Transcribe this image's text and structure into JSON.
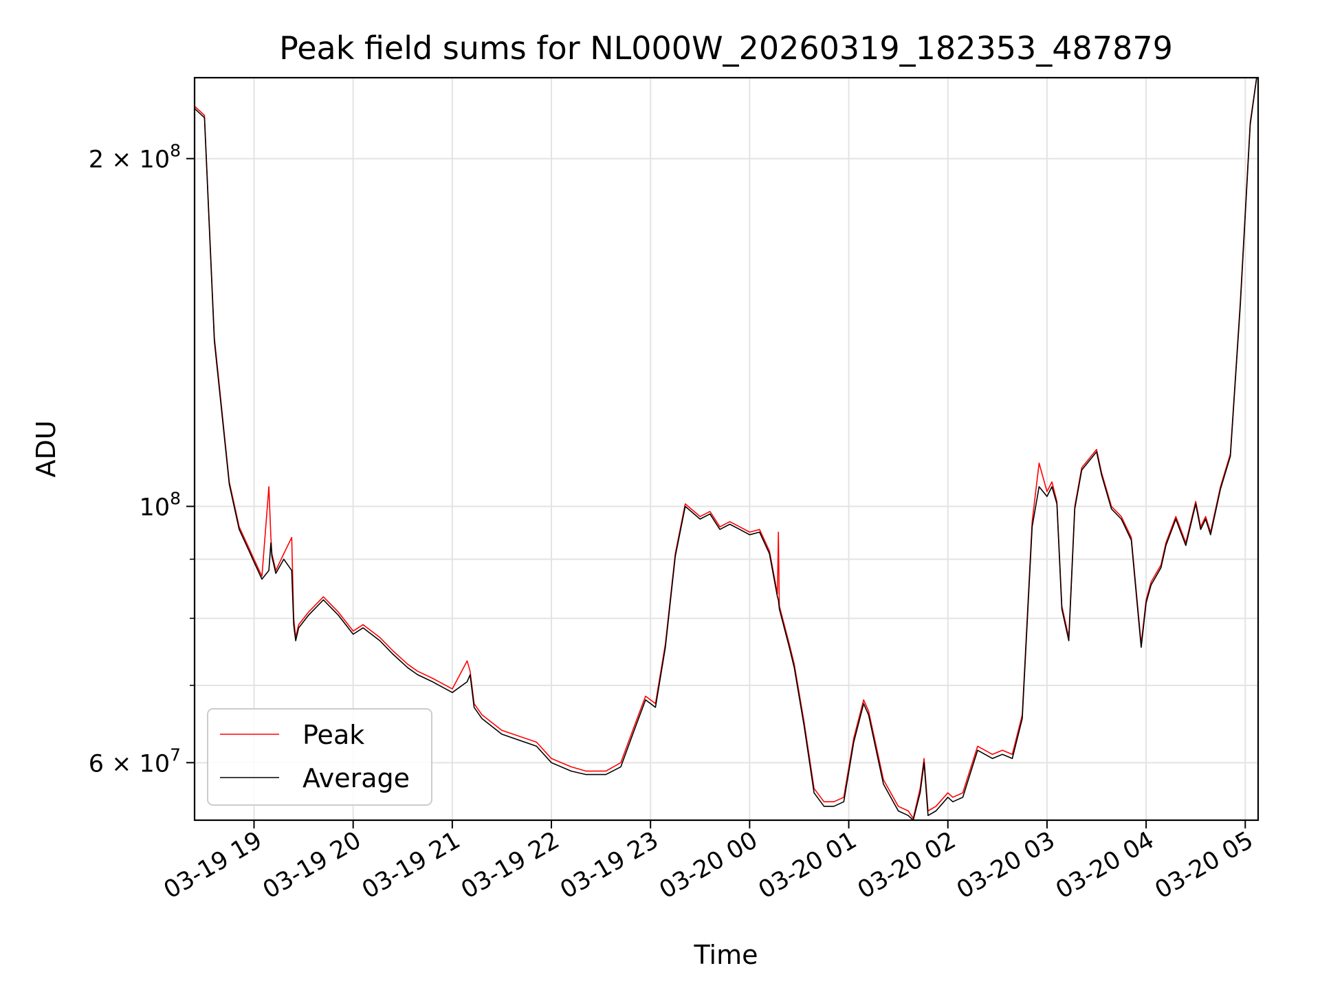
{
  "chart_data": {
    "type": "line",
    "title": "Peak field sums for NL000W_20260319_182353_487879",
    "xlabel": "Time",
    "ylabel": "ADU",
    "yscale": "log",
    "ylim": [
      53500000,
      235000000
    ],
    "xlim_hours": [
      18.4,
      29.13
    ],
    "grid": true,
    "legend_position": "lower-left",
    "x_tick_hours": [
      19,
      20,
      21,
      22,
      23,
      24,
      25,
      26,
      27,
      28,
      29
    ],
    "x_tick_labels": [
      "03-19 19",
      "03-19 20",
      "03-19 21",
      "03-19 22",
      "03-19 23",
      "03-20 00",
      "03-20 01",
      "03-20 02",
      "03-20 03",
      "03-20 04",
      "03-20 05"
    ],
    "y_major_ticks": [
      {
        "value": 60000000,
        "mantissa": "6",
        "exponent": "7"
      },
      {
        "value": 100000000,
        "mantissa": "",
        "exponent": "8"
      },
      {
        "value": 200000000,
        "mantissa": "2",
        "exponent": "8"
      }
    ],
    "y_times_symbol": "×",
    "y_base": "10",
    "y_minor_ticks": [
      70000000,
      80000000,
      90000000
    ],
    "series": [
      {
        "name": "Peak",
        "color": "#ff0000",
        "x": [
          18.4,
          18.5,
          18.6,
          18.75,
          18.85,
          18.95,
          19.0,
          19.08,
          19.15,
          19.17,
          19.18,
          19.22,
          19.3,
          19.38,
          19.4,
          19.42,
          19.45,
          19.55,
          19.7,
          19.85,
          20.0,
          20.1,
          20.27,
          20.4,
          20.55,
          20.65,
          20.8,
          21.0,
          21.15,
          21.18,
          21.22,
          21.3,
          21.5,
          21.85,
          22.0,
          22.2,
          22.35,
          22.55,
          22.7,
          22.85,
          22.95,
          23.05,
          23.15,
          23.25,
          23.35,
          23.5,
          23.6,
          23.7,
          23.8,
          23.9,
          24.0,
          24.1,
          24.2,
          24.28,
          24.29,
          24.3,
          24.4,
          24.45,
          24.55,
          24.65,
          24.75,
          24.85,
          24.95,
          25.05,
          25.15,
          25.2,
          25.35,
          25.5,
          25.6,
          25.65,
          25.72,
          25.76,
          25.8,
          25.88,
          26.0,
          26.05,
          26.15,
          26.3,
          26.45,
          26.55,
          26.65,
          26.75,
          26.85,
          26.92,
          27.0,
          27.05,
          27.1,
          27.15,
          27.22,
          27.28,
          27.35,
          27.5,
          27.55,
          27.65,
          27.75,
          27.85,
          27.95,
          28.0,
          28.05,
          28.15,
          28.2,
          28.3,
          28.4,
          28.5,
          28.55,
          28.6,
          28.65,
          28.75,
          28.85,
          28.95,
          29.05,
          29.13
        ],
        "values": [
          222000000,
          218000000,
          140000000,
          105000000,
          96000000,
          92000000,
          90000000,
          87000000,
          104000000,
          94000000,
          91000000,
          88000000,
          91000000,
          94000000,
          80000000,
          77000000,
          79000000,
          81000000,
          83500000,
          81000000,
          78000000,
          79000000,
          77000000,
          75000000,
          73000000,
          72000000,
          71000000,
          69500000,
          73500000,
          72000000,
          67500000,
          66000000,
          64000000,
          62500000,
          60500000,
          59500000,
          59000000,
          59000000,
          60000000,
          65000000,
          68500000,
          67500000,
          76000000,
          91000000,
          100500000,
          98000000,
          99000000,
          96000000,
          97000000,
          96000000,
          95000000,
          95500000,
          91500000,
          84000000,
          95000000,
          82000000,
          76000000,
          73000000,
          65000000,
          57000000,
          55500000,
          55500000,
          56000000,
          63000000,
          68000000,
          66500000,
          58000000,
          55000000,
          54500000,
          53700000,
          57000000,
          60500000,
          54500000,
          55000000,
          56500000,
          56000000,
          56500000,
          62000000,
          61000000,
          61500000,
          61000000,
          66000000,
          97000000,
          109000000,
          103000000,
          105000000,
          101000000,
          82000000,
          77000000,
          100000000,
          108000000,
          112000000,
          107000000,
          100000000,
          98000000,
          94000000,
          76000000,
          83000000,
          86000000,
          89000000,
          93000000,
          98000000,
          93000000,
          101000000,
          96000000,
          98000000,
          95000000,
          104000000,
          111000000,
          150000000,
          215000000,
          240000000
        ]
      },
      {
        "name": "Average",
        "color": "#000000",
        "x": [
          18.4,
          18.5,
          18.6,
          18.75,
          18.85,
          18.95,
          19.0,
          19.08,
          19.15,
          19.17,
          19.18,
          19.22,
          19.3,
          19.38,
          19.4,
          19.42,
          19.45,
          19.55,
          19.7,
          19.85,
          20.0,
          20.1,
          20.27,
          20.4,
          20.55,
          20.65,
          20.8,
          21.0,
          21.15,
          21.18,
          21.22,
          21.3,
          21.5,
          21.85,
          22.0,
          22.2,
          22.35,
          22.55,
          22.7,
          22.85,
          22.95,
          23.05,
          23.15,
          23.25,
          23.35,
          23.5,
          23.6,
          23.7,
          23.8,
          23.9,
          24.0,
          24.1,
          24.2,
          24.28,
          24.29,
          24.3,
          24.4,
          24.45,
          24.55,
          24.65,
          24.75,
          24.85,
          24.95,
          25.05,
          25.15,
          25.2,
          25.35,
          25.5,
          25.6,
          25.65,
          25.72,
          25.76,
          25.8,
          25.88,
          26.0,
          26.05,
          26.15,
          26.3,
          26.45,
          26.55,
          26.65,
          26.75,
          26.85,
          26.92,
          27.0,
          27.05,
          27.1,
          27.15,
          27.22,
          27.28,
          27.35,
          27.5,
          27.55,
          27.65,
          27.75,
          27.85,
          27.95,
          28.0,
          28.05,
          28.15,
          28.2,
          28.3,
          28.4,
          28.5,
          28.55,
          28.6,
          28.65,
          28.75,
          28.85,
          28.95,
          29.05,
          29.13
        ],
        "values": [
          221000000,
          217000000,
          139000000,
          104500000,
          95500000,
          91500000,
          89500000,
          86500000,
          88000000,
          93000000,
          90500000,
          87500000,
          90000000,
          88000000,
          79000000,
          76500000,
          78500000,
          80500000,
          83000000,
          80500000,
          77500000,
          78500000,
          76500000,
          74500000,
          72500000,
          71500000,
          70500000,
          69000000,
          70500000,
          71500000,
          67000000,
          65500000,
          63500000,
          62000000,
          60000000,
          59000000,
          58600000,
          58600000,
          59500000,
          64500000,
          68000000,
          67000000,
          75500000,
          90500000,
          100000000,
          97500000,
          98500000,
          95500000,
          96500000,
          95500000,
          94500000,
          95000000,
          91000000,
          83500000,
          83000000,
          81500000,
          75500000,
          72500000,
          64500000,
          56500000,
          55000000,
          55000000,
          55500000,
          62500000,
          67500000,
          66000000,
          57500000,
          54500000,
          54000000,
          53500000,
          56500000,
          60000000,
          54000000,
          54500000,
          56000000,
          55500000,
          56000000,
          61500000,
          60500000,
          61000000,
          60500000,
          65500000,
          96000000,
          104000000,
          102000000,
          104000000,
          100500000,
          81500000,
          76500000,
          99500000,
          107500000,
          111500000,
          106500000,
          99500000,
          97500000,
          93500000,
          75500000,
          82500000,
          85500000,
          88500000,
          92500000,
          97500000,
          92500000,
          100500000,
          95500000,
          97500000,
          94500000,
          103500000,
          110500000,
          149000000,
          214000000,
          240000000
        ]
      }
    ]
  }
}
